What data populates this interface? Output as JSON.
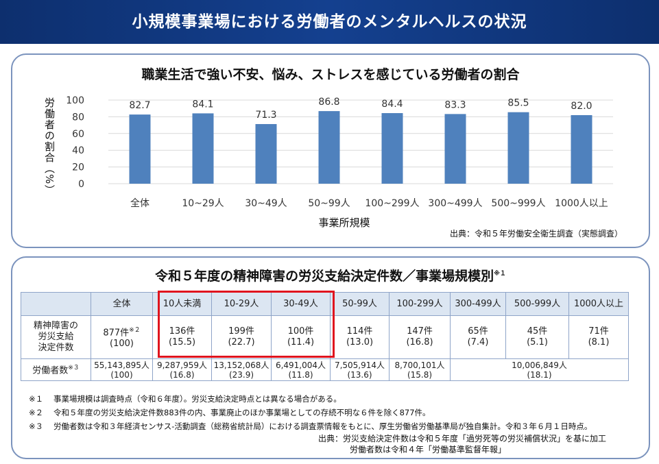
{
  "banner": {
    "title": "小規模事業場における労働者のメンタルヘルスの状況"
  },
  "chart_data": {
    "type": "bar",
    "title": "職業生活で強い不安、悩み、ストレスを感じている労働者の割合",
    "xlabel": "事業所規模",
    "ylabel": "労働者の割合（%）",
    "ylim": [
      0,
      100
    ],
    "yticks": [
      0,
      20,
      40,
      60,
      80,
      100
    ],
    "categories": [
      "全体",
      "10~29人",
      "30~49人",
      "50~99人",
      "100~299人",
      "300~499人",
      "500~999人",
      "1000人以上"
    ],
    "values": [
      82.7,
      84.1,
      71.3,
      86.8,
      84.4,
      83.3,
      85.5,
      82.0
    ],
    "value_labels": [
      "82.7",
      "84.1",
      "71.3",
      "86.8",
      "84.4",
      "83.3",
      "85.5",
      "82.0"
    ],
    "bar_color": "#4f81bd",
    "grid": true,
    "source": "出典：令和５年労働安全衛生調査（実態調査）"
  },
  "table_section": {
    "title": "令和５年度の精神障害の労災支給決定件数／事業場規模別",
    "title_note": "※１",
    "headers": [
      "全体",
      "10人未満",
      "10-29人",
      "30-49人",
      "50-99人",
      "100-299人",
      "300-499人",
      "500-999人",
      "1000人以上"
    ],
    "row1": {
      "label_lines": [
        "精神障害の",
        "労災支給",
        "決定件数"
      ],
      "cells": [
        {
          "main": "877件",
          "note": "※２",
          "sub": "(100)"
        },
        {
          "main": "136件",
          "sub": "(15.5)"
        },
        {
          "main": "199件",
          "sub": "(22.7)"
        },
        {
          "main": "100件",
          "sub": "(11.4)"
        },
        {
          "main": "114件",
          "sub": "(13.0)"
        },
        {
          "main": "147件",
          "sub": "(16.8)"
        },
        {
          "main": "65件",
          "sub": "(7.4)"
        },
        {
          "main": "45件",
          "sub": "(5.1)"
        },
        {
          "main": "71件",
          "sub": "(8.1)"
        }
      ]
    },
    "row2": {
      "label": "労働者数",
      "label_note": "※３",
      "cells": [
        {
          "main": "55,143,895人",
          "sub": "(100)"
        },
        {
          "main": "9,287,959人",
          "sub": "(16.8)"
        },
        {
          "main": "13,152,068人",
          "sub": "(23.9)"
        },
        {
          "main": "6,491,004人",
          "sub": "(11.8)"
        },
        {
          "main": "7,505,914人",
          "sub": "(13.6)"
        },
        {
          "main": "8,700,101人",
          "sub": "(15.8)"
        },
        {
          "main": "10,006,849人",
          "sub": "(18.1)"
        }
      ]
    },
    "highlight_color": "#e0141e",
    "notes": [
      {
        "mark": "※１",
        "text": "事業場規模は調査時点（令和６年度）。労災支給決定時点とは異なる場合がある。"
      },
      {
        "mark": "※２",
        "text": "令和５年度の労災支給決定件数883件の内、事業廃止のほか事業場としての存続不明な６件を除く877件。"
      },
      {
        "mark": "※３",
        "text": "労働者数は令和３年経済センサス-活動調査（総務省統計局）における調査票情報をもとに、厚生労働省労働基準局が独自集計。令和３年６月１日時点。"
      }
    ],
    "source_line1": "出典：労災支給決定件数は令和５年度「過労死等の労災補償状況」を基に加工",
    "source_line2": "労働者数は令和４年「労働基準監督年報」"
  }
}
